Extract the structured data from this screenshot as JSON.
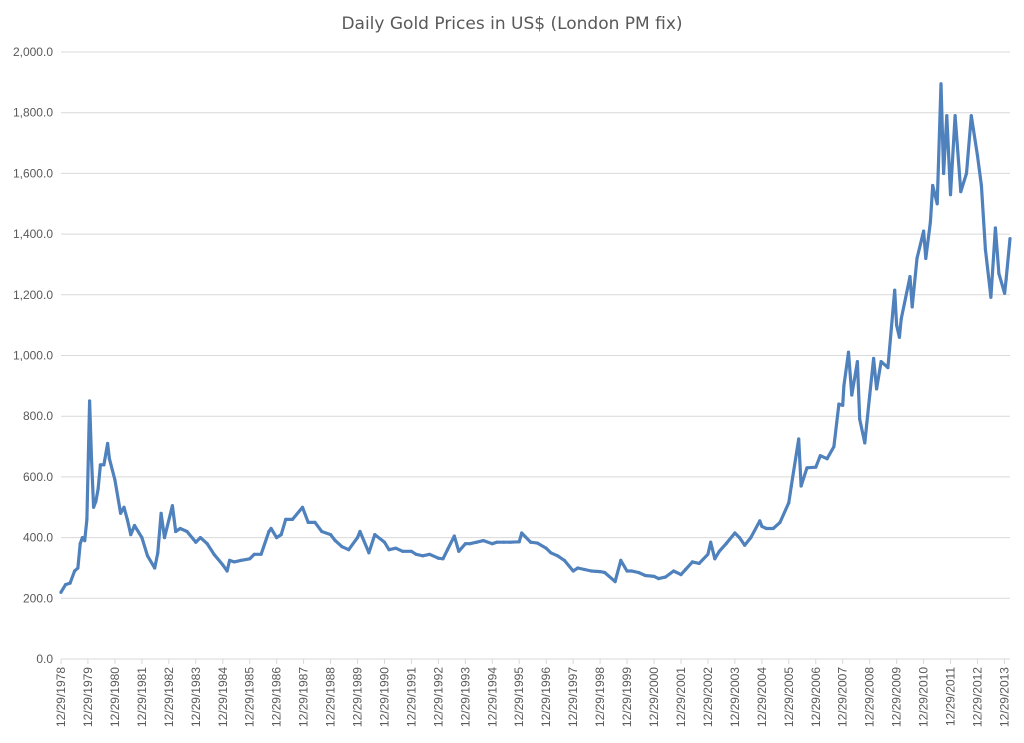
{
  "chart_data": {
    "type": "line",
    "title": "Daily Gold Prices in US$ (London PM fix)",
    "xlabel": "",
    "ylabel": "",
    "ylim": [
      0,
      2000
    ],
    "grid": true,
    "legend": "none",
    "line_color": "#4f81bd",
    "y_ticks": [
      "0.0",
      "200.0",
      "400.0",
      "600.0",
      "800.0",
      "1,000.0",
      "1,200.0",
      "1,400.0",
      "1,600.0",
      "1,800.0",
      "2,000.0"
    ],
    "x_ticks": [
      "12/29/1978",
      "12/29/1979",
      "12/29/1980",
      "12/29/1981",
      "12/29/1982",
      "12/29/1983",
      "12/29/1984",
      "12/29/1985",
      "12/29/1986",
      "12/29/1987",
      "12/29/1988",
      "12/29/1989",
      "12/29/1990",
      "12/29/1991",
      "12/29/1992",
      "12/29/1993",
      "12/29/1994",
      "12/29/1995",
      "12/29/1996",
      "12/29/1997",
      "12/29/1998",
      "12/29/1999",
      "12/29/2000",
      "12/29/2001",
      "12/29/2002",
      "12/29/2003",
      "12/29/2004",
      "12/29/2005",
      "12/29/2006",
      "12/29/2007",
      "12/29/2008",
      "12/29/2009",
      "12/29/2010",
      "12/29/2011",
      "12/29/2012",
      "12/29/2013"
    ],
    "series": [
      {
        "values": [
          [
            "1978-12-29",
            220
          ],
          [
            "1979-03-01",
            245
          ],
          [
            "1979-05-01",
            250
          ],
          [
            "1979-07-01",
            290
          ],
          [
            "1979-08-15",
            300
          ],
          [
            "1979-09-15",
            380
          ],
          [
            "1979-10-15",
            400
          ],
          [
            "1979-11-15",
            390
          ],
          [
            "1979-12-15",
            460
          ],
          [
            "1980-01-21",
            850
          ],
          [
            "1980-02-15",
            660
          ],
          [
            "1980-03-15",
            500
          ],
          [
            "1980-04-15",
            520
          ],
          [
            "1980-05-15",
            560
          ],
          [
            "1980-06-15",
            640
          ],
          [
            "1980-08-01",
            640
          ],
          [
            "1980-09-20",
            710
          ],
          [
            "1980-10-15",
            660
          ],
          [
            "1980-12-29",
            590
          ],
          [
            "1981-03-15",
            480
          ],
          [
            "1981-05-01",
            500
          ],
          [
            "1981-06-15",
            460
          ],
          [
            "1981-08-01",
            410
          ],
          [
            "1981-09-20",
            440
          ],
          [
            "1981-12-29",
            400
          ],
          [
            "1982-03-15",
            340
          ],
          [
            "1982-06-21",
            300
          ],
          [
            "1982-08-01",
            350
          ],
          [
            "1982-09-15",
            480
          ],
          [
            "1982-11-01",
            400
          ],
          [
            "1983-02-15",
            505
          ],
          [
            "1983-04-01",
            420
          ],
          [
            "1983-06-01",
            430
          ],
          [
            "1983-09-01",
            420
          ],
          [
            "1983-12-29",
            385
          ],
          [
            "1984-03-01",
            400
          ],
          [
            "1984-06-01",
            380
          ],
          [
            "1984-09-01",
            345
          ],
          [
            "1984-12-29",
            310
          ],
          [
            "1985-02-25",
            290
          ],
          [
            "1985-04-01",
            325
          ],
          [
            "1985-06-01",
            320
          ],
          [
            "1985-09-01",
            325
          ],
          [
            "1985-12-29",
            330
          ],
          [
            "1986-03-01",
            345
          ],
          [
            "1986-06-01",
            345
          ],
          [
            "1986-09-15",
            420
          ],
          [
            "1986-10-15",
            430
          ],
          [
            "1986-12-29",
            400
          ],
          [
            "1987-03-01",
            410
          ],
          [
            "1987-05-01",
            460
          ],
          [
            "1987-08-01",
            460
          ],
          [
            "1987-12-14",
            500
          ],
          [
            "1988-03-01",
            450
          ],
          [
            "1988-06-01",
            450
          ],
          [
            "1988-09-01",
            420
          ],
          [
            "1988-12-29",
            410
          ],
          [
            "1989-03-01",
            390
          ],
          [
            "1989-06-01",
            370
          ],
          [
            "1989-09-01",
            360
          ],
          [
            "1989-12-29",
            400
          ],
          [
            "1990-02-01",
            420
          ],
          [
            "1990-06-01",
            350
          ],
          [
            "1990-08-20",
            410
          ],
          [
            "1990-12-29",
            385
          ],
          [
            "1991-03-01",
            360
          ],
          [
            "1991-06-01",
            365
          ],
          [
            "1991-09-01",
            355
          ],
          [
            "1991-12-29",
            355
          ],
          [
            "1992-03-01",
            345
          ],
          [
            "1992-06-01",
            340
          ],
          [
            "1992-09-01",
            345
          ],
          [
            "1992-12-29",
            332
          ],
          [
            "1993-03-01",
            330
          ],
          [
            "1993-05-01",
            360
          ],
          [
            "1993-08-01",
            405
          ],
          [
            "1993-10-01",
            355
          ],
          [
            "1993-12-29",
            380
          ],
          [
            "1994-03-01",
            380
          ],
          [
            "1994-06-01",
            385
          ],
          [
            "1994-09-01",
            390
          ],
          [
            "1994-12-29",
            380
          ],
          [
            "1995-03-01",
            385
          ],
          [
            "1995-06-01",
            385
          ],
          [
            "1995-09-01",
            385
          ],
          [
            "1995-12-29",
            386
          ],
          [
            "1996-02-01",
            415
          ],
          [
            "1996-06-01",
            385
          ],
          [
            "1996-09-01",
            382
          ],
          [
            "1996-12-29",
            365
          ],
          [
            "1997-03-01",
            350
          ],
          [
            "1997-06-01",
            340
          ],
          [
            "1997-09-01",
            325
          ],
          [
            "1997-12-29",
            290
          ],
          [
            "1998-03-01",
            300
          ],
          [
            "1998-06-01",
            295
          ],
          [
            "1998-09-01",
            290
          ],
          [
            "1998-12-29",
            288
          ],
          [
            "1999-03-01",
            285
          ],
          [
            "1999-07-20",
            255
          ],
          [
            "1999-10-05",
            325
          ],
          [
            "1999-12-29",
            290
          ],
          [
            "2000-03-01",
            290
          ],
          [
            "2000-06-01",
            285
          ],
          [
            "2000-09-01",
            275
          ],
          [
            "2000-12-29",
            272
          ],
          [
            "2001-03-01",
            265
          ],
          [
            "2001-06-01",
            270
          ],
          [
            "2001-09-20",
            290
          ],
          [
            "2001-12-29",
            278
          ],
          [
            "2002-03-01",
            295
          ],
          [
            "2002-06-01",
            320
          ],
          [
            "2002-09-01",
            315
          ],
          [
            "2002-12-29",
            345
          ],
          [
            "2003-02-05",
            385
          ],
          [
            "2003-04-01",
            330
          ],
          [
            "2003-06-01",
            355
          ],
          [
            "2003-09-01",
            380
          ],
          [
            "2003-12-29",
            415
          ],
          [
            "2004-03-01",
            400
          ],
          [
            "2004-05-10",
            375
          ],
          [
            "2004-08-01",
            400
          ],
          [
            "2004-12-01",
            455
          ],
          [
            "2004-12-29",
            437
          ],
          [
            "2005-03-01",
            430
          ],
          [
            "2005-06-01",
            430
          ],
          [
            "2005-09-01",
            450
          ],
          [
            "2005-12-29",
            515
          ],
          [
            "2006-02-01",
            570
          ],
          [
            "2006-05-12",
            725
          ],
          [
            "2006-06-14",
            570
          ],
          [
            "2006-09-01",
            630
          ],
          [
            "2006-12-29",
            632
          ],
          [
            "2007-03-01",
            670
          ],
          [
            "2007-06-01",
            660
          ],
          [
            "2007-09-01",
            700
          ],
          [
            "2007-11-08",
            840
          ],
          [
            "2007-12-29",
            836
          ],
          [
            "2008-01-15",
            900
          ],
          [
            "2008-03-17",
            1011
          ],
          [
            "2008-05-01",
            870
          ],
          [
            "2008-07-15",
            980
          ],
          [
            "2008-08-15",
            790
          ],
          [
            "2008-10-24",
            712
          ],
          [
            "2008-12-29",
            869
          ],
          [
            "2009-02-20",
            990
          ],
          [
            "2009-04-01",
            890
          ],
          [
            "2009-06-01",
            980
          ],
          [
            "2009-09-01",
            960
          ],
          [
            "2009-12-03",
            1215
          ],
          [
            "2009-12-29",
            1100
          ],
          [
            "2010-02-05",
            1060
          ],
          [
            "2010-03-01",
            1120
          ],
          [
            "2010-06-28",
            1260
          ],
          [
            "2010-07-28",
            1160
          ],
          [
            "2010-10-01",
            1320
          ],
          [
            "2010-12-29",
            1410
          ],
          [
            "2011-01-28",
            1320
          ],
          [
            "2011-04-01",
            1440
          ],
          [
            "2011-05-01",
            1560
          ],
          [
            "2011-07-01",
            1500
          ],
          [
            "2011-08-22",
            1895
          ],
          [
            "2011-09-26",
            1600
          ],
          [
            "2011-11-08",
            1790
          ],
          [
            "2011-12-29",
            1530
          ],
          [
            "2012-02-29",
            1790
          ],
          [
            "2012-05-16",
            1540
          ],
          [
            "2012-08-01",
            1600
          ],
          [
            "2012-10-05",
            1790
          ],
          [
            "2012-12-29",
            1658
          ],
          [
            "2013-02-20",
            1560
          ],
          [
            "2013-04-15",
            1350
          ],
          [
            "2013-06-28",
            1192
          ],
          [
            "2013-08-28",
            1420
          ],
          [
            "2013-10-15",
            1270
          ],
          [
            "2013-12-31",
            1205
          ],
          [
            "2014-01-20",
            1250
          ],
          [
            "2014-03-14",
            1385
          ]
        ]
      }
    ]
  }
}
